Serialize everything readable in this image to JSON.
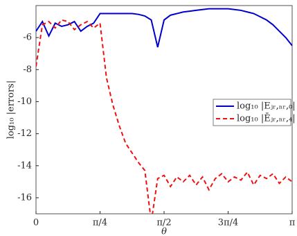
{
  "chart_data": {
    "type": "line",
    "xlabel": "θ",
    "ylabel": "log₁₀ |errors|",
    "x": [
      0,
      0.0785,
      0.1571,
      0.2356,
      0.3142,
      0.3927,
      0.4712,
      0.5498,
      0.6283,
      0.7069,
      0.7854,
      0.8639,
      0.9425,
      1.021,
      1.0996,
      1.1781,
      1.2566,
      1.3352,
      1.4137,
      1.4923,
      1.5708,
      1.6493,
      1.7279,
      1.8064,
      1.885,
      1.9635,
      2.042,
      2.1206,
      2.1991,
      2.2777,
      2.3562,
      2.4347,
      2.5133,
      2.5918,
      2.6704,
      2.7489,
      2.8274,
      2.906,
      2.9845,
      3.0631,
      3.1416
    ],
    "series": [
      {
        "name": "log₁₀ |Eⱼᵣ,ₙᵣ,₀|",
        "color": "#0000cc",
        "dash": false,
        "values": [
          -5.6,
          -5.0,
          -5.9,
          -5.1,
          -5.3,
          -5.2,
          -5.0,
          -5.6,
          -5.3,
          -5.1,
          -4.5,
          -4.5,
          -4.5,
          -4.5,
          -4.5,
          -4.5,
          -4.55,
          -4.65,
          -4.9,
          -6.6,
          -4.9,
          -4.6,
          -4.5,
          -4.4,
          -4.35,
          -4.3,
          -4.25,
          -4.2,
          -4.2,
          -4.2,
          -4.2,
          -4.25,
          -4.3,
          -4.4,
          -4.5,
          -4.7,
          -4.9,
          -5.2,
          -5.6,
          -6.0,
          -6.5
        ]
      },
      {
        "name": "log₁₀ |Ēⱼᵣ,ₙᵣ,₄|",
        "color": "#ee1111",
        "dash": true,
        "values": [
          -7.8,
          -5.2,
          -5.0,
          -5.4,
          -4.9,
          -5.0,
          -5.5,
          -5.2,
          -5.0,
          -5.4,
          -5.1,
          -8.5,
          -10.2,
          -11.5,
          -12.6,
          -13.2,
          -13.8,
          -14.3,
          -17.5,
          -14.8,
          -14.6,
          -15.3,
          -14.7,
          -15.0,
          -14.6,
          -15.2,
          -14.7,
          -15.5,
          -14.8,
          -14.5,
          -15.0,
          -14.7,
          -14.9,
          -14.4,
          -15.2,
          -14.6,
          -14.8,
          -14.5,
          -15.1,
          -14.7,
          -15.0
        ]
      }
    ],
    "xlim": [
      0,
      3.1416
    ],
    "xticks": [
      0,
      {
        "value": 0.7854,
        "label": "π/4"
      },
      {
        "value": 1.5708,
        "label": "π/2"
      },
      {
        "value": 2.3562,
        "label": "3π/4"
      },
      {
        "value": 3.1416,
        "label": "π"
      }
    ],
    "ylim": [
      -17,
      -4
    ],
    "yticks": [
      -16,
      -14,
      -12,
      -10,
      -8,
      -6
    ],
    "legend": "right"
  }
}
